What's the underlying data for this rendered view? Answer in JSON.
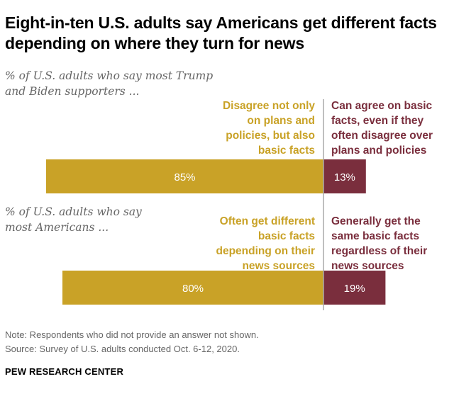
{
  "title": "Eight-in-ten U.S. adults say Americans get different facts depending on where they turn for news",
  "rows": [
    {
      "question": [
        "% of U.S. adults who say most Trump",
        "and Biden supporters ..."
      ],
      "left_label": [
        "Disagree not only",
        "on plans and",
        "policies, but also",
        "basic facts"
      ],
      "right_label": [
        "Can agree on basic",
        "facts, even if they",
        "often disagree over",
        "plans and policies"
      ]
    },
    {
      "question": [
        "% of U.S. adults who say",
        "most Americans ..."
      ],
      "left_label": [
        "Often get different",
        "basic facts",
        "depending on their",
        "news sources"
      ],
      "right_label": [
        "Generally get the",
        "same basic facts",
        "regardless of their",
        "news sources"
      ]
    }
  ],
  "chart_data": {
    "type": "bar",
    "orientation": "horizontal-diverging",
    "categories": [
      "Trump and Biden supporters",
      "Most Americans"
    ],
    "series": [
      {
        "values": [
          85,
          80
        ],
        "labels": [
          "85%",
          "80%"
        ],
        "color": "#c9a227"
      },
      {
        "values": [
          13,
          19
        ],
        "labels": [
          "13%",
          "19%"
        ],
        "color": "#7a2e3d"
      }
    ]
  },
  "note": "Note: Respondents who did not provide an answer not shown.",
  "source": "Source: Survey of U.S. adults conducted Oct. 6-12, 2020.",
  "brand": "PEW RESEARCH CENTER"
}
